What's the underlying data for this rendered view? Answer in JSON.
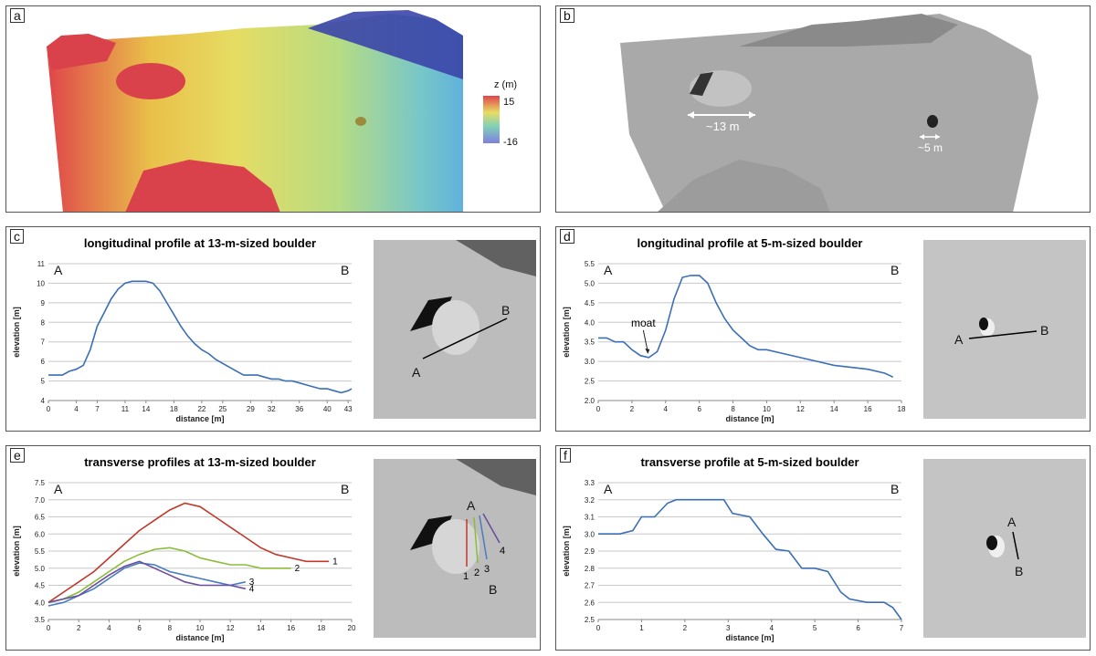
{
  "panels": {
    "a": {
      "label": "a",
      "legend_title": "z (m)",
      "legend_max": "15",
      "legend_min": "-16"
    },
    "b": {
      "label": "b",
      "scale1": "~13 m",
      "scale2": "~5 m"
    },
    "c": {
      "label": "c"
    },
    "d": {
      "label": "d"
    },
    "e": {
      "label": "e"
    },
    "f": {
      "label": "f"
    }
  },
  "thumbs": {
    "c": {
      "A": "A",
      "B": "B"
    },
    "d": {
      "A": "A",
      "B": "B"
    },
    "e": {
      "A": "A",
      "B": "B",
      "n1": "1",
      "n2": "2",
      "n3": "3",
      "n4": "4"
    },
    "f": {
      "A": "A",
      "B": "B"
    }
  },
  "colors": {
    "series_blue": "#3a6fb5",
    "red": "#c0392b",
    "green": "#8bbd3b",
    "blue": "#4a7cc0",
    "purple": "#6a4c9c"
  },
  "chart_data": [
    {
      "id": "c",
      "type": "line",
      "title": "longitudinal profile at 13-m-sized boulder",
      "xlabel": "distance [m]",
      "ylabel": "elevation [m]",
      "end_left": "A",
      "end_right": "B",
      "xlim": [
        0,
        43.5
      ],
      "ylim": [
        4,
        11
      ],
      "xticks": [
        0,
        4,
        7,
        11,
        14,
        18,
        22,
        25,
        29,
        32,
        36,
        40,
        43
      ],
      "yticks": [
        4,
        5,
        6,
        7,
        8,
        9,
        10,
        11
      ],
      "grid": "horizontal",
      "series": [
        {
          "color": "#3a6fb5",
          "annotations": [],
          "x": [
            0,
            2,
            3,
            4,
            5,
            6,
            7,
            8,
            9,
            10,
            11,
            12,
            13,
            14,
            15,
            16,
            17,
            18,
            19,
            20,
            21,
            22,
            23,
            24,
            25,
            26,
            27,
            28,
            29,
            30,
            31,
            32,
            33,
            34,
            35,
            36,
            37,
            38,
            39,
            40,
            41,
            42,
            43,
            43.5
          ],
          "y": [
            5.3,
            5.3,
            5.5,
            5.6,
            5.8,
            6.6,
            7.8,
            8.5,
            9.2,
            9.7,
            10.0,
            10.1,
            10.1,
            10.1,
            10.0,
            9.6,
            9.0,
            8.4,
            7.8,
            7.3,
            6.9,
            6.6,
            6.4,
            6.1,
            5.9,
            5.7,
            5.5,
            5.3,
            5.3,
            5.3,
            5.2,
            5.1,
            5.1,
            5.0,
            5.0,
            4.9,
            4.8,
            4.7,
            4.6,
            4.6,
            4.5,
            4.4,
            4.5,
            4.6
          ]
        }
      ]
    },
    {
      "id": "d",
      "type": "line",
      "title": "longitudinal profile at 5-m-sized boulder",
      "xlabel": "distance [m]",
      "ylabel": "elevation [m]",
      "end_left": "A",
      "end_right": "B",
      "xlim": [
        0,
        18
      ],
      "ylim": [
        2.0,
        5.5
      ],
      "xticks": [
        0,
        2,
        4,
        6,
        8,
        10,
        12,
        14,
        16,
        18
      ],
      "yticks": [
        2.0,
        2.5,
        3.0,
        3.5,
        4.0,
        4.5,
        5.0,
        5.5
      ],
      "grid": "horizontal",
      "annotations": [
        {
          "text": "moat",
          "x": 3,
          "y": 3.1
        }
      ],
      "series": [
        {
          "color": "#3a6fb5",
          "x": [
            0,
            0.5,
            1,
            1.5,
            2,
            2.5,
            3,
            3.5,
            4,
            4.5,
            5,
            5.5,
            6,
            6.5,
            7,
            7.5,
            8,
            8.5,
            9,
            9.5,
            10,
            11,
            12,
            13,
            14,
            15,
            16,
            17,
            17.5
          ],
          "y": [
            3.6,
            3.6,
            3.5,
            3.5,
            3.3,
            3.15,
            3.1,
            3.25,
            3.8,
            4.6,
            5.15,
            5.2,
            5.2,
            5.0,
            4.5,
            4.1,
            3.8,
            3.6,
            3.4,
            3.3,
            3.3,
            3.2,
            3.1,
            3.0,
            2.9,
            2.85,
            2.8,
            2.7,
            2.6
          ]
        }
      ]
    },
    {
      "id": "e",
      "type": "line",
      "title": "transverse profiles at 13-m-sized boulder",
      "xlabel": "distance [m]",
      "ylabel": "elevation [m]",
      "end_left": "A",
      "end_right": "B",
      "xlim": [
        0,
        20
      ],
      "ylim": [
        3.5,
        7.5
      ],
      "xticks": [
        0,
        2,
        4,
        6,
        8,
        10,
        12,
        14,
        16,
        18,
        20
      ],
      "yticks": [
        3.5,
        4.0,
        4.5,
        5.0,
        5.5,
        6.0,
        6.5,
        7.0,
        7.5
      ],
      "grid": "horizontal",
      "series": [
        {
          "name": "1",
          "color": "#c0392b",
          "x": [
            0,
            1,
            2,
            3,
            4,
            5,
            6,
            7,
            8,
            9,
            10,
            11,
            12,
            13,
            14,
            15,
            16,
            17,
            18,
            18.5
          ],
          "y": [
            4.0,
            4.3,
            4.6,
            4.9,
            5.3,
            5.7,
            6.1,
            6.4,
            6.7,
            6.9,
            6.8,
            6.5,
            6.2,
            5.9,
            5.6,
            5.4,
            5.3,
            5.2,
            5.2,
            5.2
          ]
        },
        {
          "name": "2",
          "color": "#8bbd3b",
          "x": [
            0,
            1,
            2,
            3,
            4,
            5,
            6,
            7,
            8,
            9,
            10,
            11,
            12,
            13,
            14,
            15,
            16
          ],
          "y": [
            4.0,
            4.1,
            4.3,
            4.6,
            4.9,
            5.2,
            5.4,
            5.55,
            5.6,
            5.5,
            5.3,
            5.2,
            5.1,
            5.1,
            5.0,
            5.0,
            5.0
          ]
        },
        {
          "name": "3",
          "color": "#4a7cc0",
          "x": [
            0,
            1,
            2,
            3,
            4,
            5,
            6,
            7,
            8,
            9,
            10,
            11,
            12,
            13
          ],
          "y": [
            3.9,
            4.0,
            4.2,
            4.4,
            4.7,
            5.0,
            5.15,
            5.1,
            4.9,
            4.8,
            4.7,
            4.6,
            4.5,
            4.6
          ]
        },
        {
          "name": "4",
          "color": "#6a4c9c",
          "x": [
            0,
            1,
            2,
            3,
            4,
            5,
            6,
            7,
            8,
            9,
            10,
            11,
            12,
            13
          ],
          "y": [
            4.0,
            4.1,
            4.2,
            4.5,
            4.8,
            5.05,
            5.2,
            5.0,
            4.8,
            4.6,
            4.5,
            4.5,
            4.5,
            4.4
          ]
        }
      ]
    },
    {
      "id": "f",
      "type": "line",
      "title": "transverse profile at 5-m-sized boulder",
      "xlabel": "distance [m]",
      "ylabel": "elevation [m]",
      "end_left": "A",
      "end_right": "B",
      "xlim": [
        0,
        7
      ],
      "ylim": [
        2.5,
        3.3
      ],
      "xticks": [
        0,
        1,
        2,
        3,
        4,
        5,
        6,
        7
      ],
      "yticks": [
        2.5,
        2.6,
        2.7,
        2.8,
        2.9,
        3.0,
        3.1,
        3.2,
        3.3
      ],
      "grid": "horizontal",
      "series": [
        {
          "color": "#3a6fb5",
          "x": [
            0,
            0.5,
            0.8,
            1,
            1.3,
            1.6,
            1.8,
            2.2,
            2.6,
            2.9,
            3.1,
            3.5,
            3.8,
            4.1,
            4.4,
            4.7,
            5.0,
            5.3,
            5.6,
            5.8,
            6.2,
            6.6,
            6.8,
            7
          ],
          "y": [
            3.0,
            3.0,
            3.02,
            3.1,
            3.1,
            3.18,
            3.2,
            3.2,
            3.2,
            3.2,
            3.12,
            3.1,
            3.0,
            2.91,
            2.9,
            2.8,
            2.8,
            2.78,
            2.66,
            2.62,
            2.6,
            2.6,
            2.57,
            2.5
          ]
        }
      ]
    }
  ]
}
